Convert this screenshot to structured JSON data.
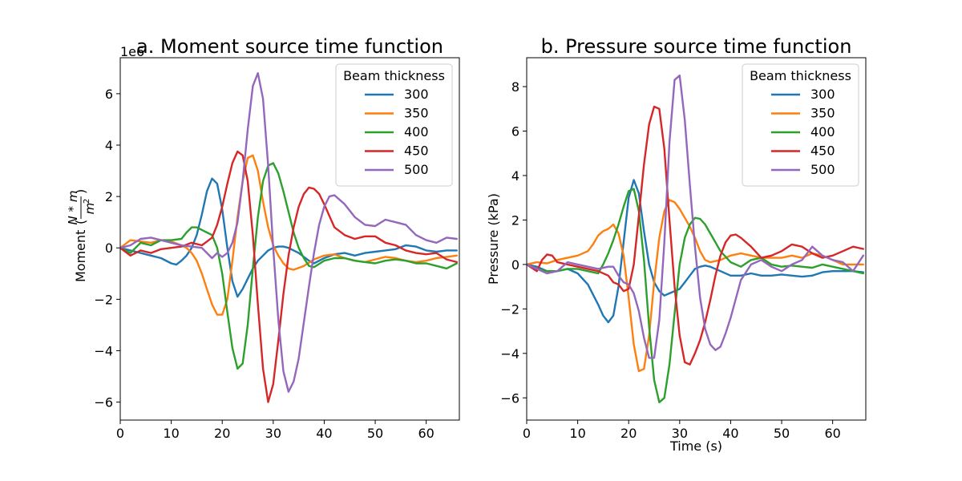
{
  "chart_data": [
    {
      "type": "line",
      "title": "a. Moment source time function",
      "xlabel": "",
      "ylabel": "Moment",
      "ylabel_unit": "(N*m / m²)",
      "y_offset_label": "1e6",
      "xlim": [
        0,
        66.5
      ],
      "ylim": [
        -6.7,
        7.4
      ],
      "xticks": [
        0,
        10,
        20,
        30,
        40,
        50,
        60
      ],
      "yticks": [
        -6,
        -4,
        -2,
        0,
        2,
        4,
        6
      ],
      "legend": {
        "title": "Beam thickness",
        "placement": "upper right"
      },
      "series": [
        {
          "name": "300",
          "color": "#1f77b4",
          "x": [
            0,
            2,
            4,
            6,
            8,
            10,
            11,
            12,
            13,
            14,
            15,
            16,
            17,
            18,
            19,
            20,
            21,
            22,
            23,
            24,
            25,
            26,
            27,
            28,
            29,
            30,
            31,
            32,
            33,
            34,
            35,
            36,
            37,
            38,
            40,
            42,
            44,
            46,
            48,
            50,
            52,
            54,
            56,
            58,
            60,
            62,
            64,
            66
          ],
          "y": [
            0,
            -0.1,
            -0.2,
            -0.3,
            -0.4,
            -0.6,
            -0.65,
            -0.5,
            -0.3,
            0,
            0.5,
            1.3,
            2.2,
            2.7,
            2.5,
            1.5,
            0,
            -1.3,
            -1.9,
            -1.6,
            -1.2,
            -0.8,
            -0.5,
            -0.3,
            -0.1,
            0,
            0.05,
            0.05,
            0,
            -0.1,
            -0.2,
            -0.35,
            -0.5,
            -0.6,
            -0.4,
            -0.25,
            -0.2,
            -0.3,
            -0.2,
            -0.15,
            -0.1,
            -0.05,
            0.1,
            0.05,
            -0.1,
            -0.15,
            -0.1,
            -0.1
          ]
        },
        {
          "name": "350",
          "color": "#ff7f0e",
          "x": [
            0,
            2,
            4,
            6,
            8,
            10,
            12,
            13,
            14,
            15,
            16,
            17,
            18,
            19,
            20,
            21,
            22,
            23,
            24,
            25,
            26,
            27,
            28,
            29,
            30,
            31,
            32,
            33,
            34,
            36,
            38,
            40,
            42,
            44,
            46,
            48,
            50,
            52,
            54,
            56,
            58,
            60,
            62,
            64,
            66
          ],
          "y": [
            0,
            0.3,
            0.25,
            0.2,
            0.3,
            0.25,
            0.1,
            0,
            -0.2,
            -0.5,
            -1,
            -1.6,
            -2.2,
            -2.6,
            -2.6,
            -2,
            -0.5,
            1.2,
            2.6,
            3.5,
            3.6,
            3,
            1.8,
            0.8,
            0.1,
            -0.3,
            -0.6,
            -0.8,
            -0.85,
            -0.7,
            -0.45,
            -0.3,
            -0.25,
            -0.4,
            -0.5,
            -0.55,
            -0.45,
            -0.35,
            -0.4,
            -0.5,
            -0.55,
            -0.5,
            -0.4,
            -0.35,
            -0.3
          ]
        },
        {
          "name": "400",
          "color": "#2ca02c",
          "x": [
            0,
            2,
            4,
            6,
            8,
            10,
            12,
            13,
            14,
            15,
            16,
            17,
            18,
            19,
            20,
            21,
            22,
            23,
            24,
            25,
            26,
            27,
            28,
            29,
            30,
            31,
            32,
            33,
            34,
            35,
            36,
            37,
            38,
            40,
            42,
            44,
            46,
            48,
            50,
            52,
            54,
            56,
            58,
            60,
            62,
            64,
            66
          ],
          "y": [
            0,
            -0.2,
            0.2,
            0.1,
            0.3,
            0.3,
            0.35,
            0.6,
            0.8,
            0.8,
            0.7,
            0.6,
            0.5,
            0,
            -1,
            -2.5,
            -3.9,
            -4.7,
            -4.5,
            -3,
            -0.8,
            1.2,
            2.6,
            3.2,
            3.3,
            2.9,
            2.2,
            1.4,
            0.6,
            0,
            -0.4,
            -0.7,
            -0.75,
            -0.5,
            -0.4,
            -0.4,
            -0.5,
            -0.55,
            -0.6,
            -0.5,
            -0.45,
            -0.5,
            -0.6,
            -0.6,
            -0.7,
            -0.8,
            -0.6
          ]
        },
        {
          "name": "450",
          "color": "#d62728",
          "x": [
            0,
            2,
            4,
            6,
            8,
            10,
            12,
            14,
            16,
            18,
            19,
            20,
            21,
            22,
            23,
            24,
            25,
            26,
            27,
            28,
            29,
            30,
            31,
            32,
            33,
            34,
            35,
            36,
            37,
            38,
            39,
            40,
            42,
            44,
            46,
            48,
            50,
            52,
            54,
            56,
            58,
            60,
            62,
            64,
            66
          ],
          "y": [
            0,
            -0.3,
            -0.1,
            -0.2,
            -0.05,
            0,
            0.05,
            0.2,
            0.1,
            0.4,
            0.9,
            1.6,
            2.5,
            3.3,
            3.75,
            3.6,
            2.6,
            0.5,
            -2.2,
            -4.7,
            -6,
            -5.3,
            -3.6,
            -1.8,
            -0.3,
            0.8,
            1.6,
            2.1,
            2.35,
            2.3,
            2.1,
            1.7,
            0.8,
            0.5,
            0.35,
            0.45,
            0.45,
            0.2,
            0.1,
            -0.1,
            -0.2,
            -0.25,
            -0.2,
            -0.45,
            -0.55
          ]
        },
        {
          "name": "500",
          "color": "#9467bd",
          "x": [
            0,
            2,
            4,
            6,
            8,
            10,
            12,
            14,
            16,
            18,
            19,
            20,
            21,
            22,
            23,
            24,
            25,
            26,
            27,
            28,
            29,
            30,
            31,
            32,
            33,
            34,
            35,
            36,
            37,
            38,
            39,
            40,
            41,
            42,
            44,
            46,
            48,
            50,
            52,
            54,
            56,
            58,
            60,
            62,
            64,
            66
          ],
          "y": [
            0,
            0.1,
            0.35,
            0.4,
            0.3,
            0.2,
            0.1,
            0.05,
            0,
            -0.4,
            -0.2,
            -0.35,
            -0.2,
            0.2,
            1,
            2.6,
            4.6,
            6.3,
            6.8,
            5.8,
            3.2,
            0,
            -2.8,
            -4.8,
            -5.6,
            -5.2,
            -4.3,
            -2.9,
            -1.5,
            -0.2,
            0.9,
            1.6,
            2,
            2.05,
            1.7,
            1.2,
            0.9,
            0.85,
            1.1,
            1,
            0.9,
            0.5,
            0.3,
            0.2,
            0.4,
            0.35
          ]
        }
      ]
    },
    {
      "type": "line",
      "title": "b. Pressure source time function",
      "xlabel": "Time (s)",
      "ylabel": "Pressure (kPa)",
      "xlim": [
        0,
        66.5
      ],
      "ylim": [
        -7,
        9.3
      ],
      "xticks": [
        0,
        10,
        20,
        30,
        40,
        50,
        60
      ],
      "yticks": [
        -6,
        -4,
        -2,
        0,
        2,
        4,
        6,
        8
      ],
      "legend": {
        "title": "Beam thickness",
        "placement": "upper right"
      },
      "series": [
        {
          "name": "300",
          "color": "#1f77b4",
          "x": [
            0,
            2,
            4,
            6,
            8,
            10,
            12,
            14,
            15,
            16,
            17,
            18,
            19,
            20,
            21,
            22,
            23,
            24,
            25,
            26,
            27,
            28,
            29,
            30,
            31,
            32,
            33,
            34,
            35,
            36,
            38,
            40,
            42,
            44,
            46,
            48,
            50,
            52,
            54,
            56,
            58,
            60,
            62,
            64,
            66
          ],
          "y": [
            0,
            -0.1,
            -0.3,
            -0.3,
            -0.2,
            -0.4,
            -0.9,
            -1.8,
            -2.3,
            -2.6,
            -2.3,
            -1,
            1,
            3,
            3.8,
            3.2,
            1.5,
            0,
            -0.8,
            -1.2,
            -1.4,
            -1.3,
            -1.2,
            -1.1,
            -0.8,
            -0.5,
            -0.2,
            -0.1,
            -0.05,
            -0.1,
            -0.3,
            -0.5,
            -0.5,
            -0.4,
            -0.5,
            -0.5,
            -0.45,
            -0.5,
            -0.55,
            -0.5,
            -0.35,
            -0.3,
            -0.3,
            -0.3,
            -0.35
          ]
        },
        {
          "name": "350",
          "color": "#ff7f0e",
          "x": [
            0,
            2,
            4,
            6,
            8,
            10,
            12,
            13,
            14,
            15,
            16,
            17,
            18,
            19,
            20,
            21,
            22,
            23,
            24,
            25,
            26,
            27,
            28,
            29,
            30,
            31,
            32,
            33,
            34,
            35,
            36,
            38,
            40,
            42,
            44,
            46,
            48,
            50,
            52,
            54,
            56,
            58,
            60,
            62,
            64,
            66
          ],
          "y": [
            0,
            0.1,
            0.05,
            0.2,
            0.3,
            0.4,
            0.6,
            0.9,
            1.3,
            1.5,
            1.6,
            1.8,
            1.4,
            0.4,
            -1.5,
            -3.6,
            -4.8,
            -4.7,
            -3.2,
            -0.8,
            1.2,
            2.4,
            2.9,
            2.8,
            2.5,
            2.1,
            1.7,
            1.2,
            0.6,
            0.2,
            0.1,
            0.2,
            0.4,
            0.5,
            0.4,
            0.3,
            0.3,
            0.3,
            0.4,
            0.3,
            0.5,
            0.4,
            0.2,
            0,
            0,
            0
          ]
        },
        {
          "name": "400",
          "color": "#2ca02c",
          "x": [
            0,
            2,
            4,
            6,
            8,
            10,
            12,
            14,
            15,
            16,
            17,
            18,
            19,
            20,
            21,
            22,
            23,
            24,
            25,
            26,
            27,
            28,
            29,
            30,
            31,
            32,
            33,
            34,
            35,
            36,
            37,
            38,
            40,
            42,
            44,
            46,
            48,
            50,
            52,
            54,
            56,
            58,
            60,
            62,
            64,
            66
          ],
          "y": [
            0,
            -0.2,
            -0.3,
            -0.3,
            -0.2,
            -0.2,
            -0.3,
            -0.4,
            0,
            0.5,
            1.1,
            1.8,
            2.6,
            3.3,
            3.4,
            2.4,
            0.2,
            -2.8,
            -5.2,
            -6.2,
            -6,
            -4.5,
            -2.2,
            0,
            1.2,
            1.8,
            2.1,
            2.05,
            1.8,
            1.4,
            1,
            0.6,
            0.1,
            -0.1,
            0.2,
            0.3,
            0,
            -0.1,
            -0.05,
            -0.1,
            -0.15,
            0,
            -0.1,
            -0.2,
            -0.3,
            -0.4
          ]
        },
        {
          "name": "450",
          "color": "#d62728",
          "x": [
            0,
            2,
            3,
            4,
            5,
            6,
            8,
            10,
            12,
            14,
            16,
            17,
            18,
            19,
            20,
            21,
            22,
            23,
            24,
            25,
            26,
            27,
            28,
            29,
            30,
            31,
            32,
            33,
            34,
            35,
            36,
            37,
            38,
            39,
            40,
            41,
            42,
            44,
            46,
            48,
            50,
            52,
            54,
            56,
            58,
            60,
            62,
            64,
            66
          ],
          "y": [
            0,
            -0.3,
            0.2,
            0.45,
            0.4,
            0.1,
            0,
            -0.1,
            -0.2,
            -0.3,
            -0.5,
            -0.8,
            -0.9,
            -1.2,
            -1.1,
            0,
            2.2,
            4.5,
            6.3,
            7.1,
            7,
            5.2,
            2,
            -1,
            -3.2,
            -4.4,
            -4.5,
            -4,
            -3.4,
            -2.6,
            -1.6,
            -0.5,
            0.4,
            1,
            1.3,
            1.35,
            1.2,
            0.8,
            0.3,
            0.4,
            0.6,
            0.9,
            0.8,
            0.5,
            0.3,
            0.4,
            0.6,
            0.8,
            0.7
          ]
        },
        {
          "name": "500",
          "color": "#9467bd",
          "x": [
            0,
            2,
            4,
            6,
            8,
            10,
            12,
            14,
            16,
            17,
            18,
            19,
            20,
            21,
            22,
            23,
            24,
            25,
            26,
            27,
            28,
            29,
            30,
            31,
            32,
            33,
            34,
            35,
            36,
            37,
            38,
            39,
            40,
            42,
            44,
            46,
            48,
            50,
            52,
            54,
            56,
            58,
            60,
            62,
            64,
            66
          ],
          "y": [
            0,
            -0.2,
            -0.4,
            -0.3,
            0.1,
            0,
            -0.1,
            -0.2,
            -0.1,
            -0.1,
            -0.5,
            -0.8,
            -0.9,
            -1.3,
            -2.1,
            -3.3,
            -4.2,
            -4.2,
            -2.5,
            1,
            5.5,
            8.3,
            8.5,
            6.5,
            3.6,
            0.8,
            -1.5,
            -2.9,
            -3.6,
            -3.85,
            -3.7,
            -3.1,
            -2.4,
            -0.7,
            0,
            0.2,
            -0.1,
            -0.3,
            0,
            0.2,
            0.8,
            0.4,
            0.2,
            0.1,
            -0.3,
            0.4
          ]
        }
      ]
    }
  ]
}
